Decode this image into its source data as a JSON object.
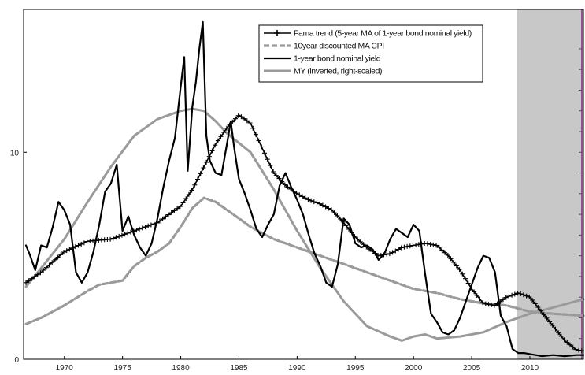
{
  "chart_data": {
    "type": "line",
    "xlim": [
      1966.5,
      2014.6
    ],
    "ylim": [
      0,
      16.9
    ],
    "shaded_region": {
      "x_start": 2008.9,
      "x_end": 2014.6,
      "color": "#c8c8c8"
    },
    "x_ticks": [
      1970,
      1975,
      1980,
      1985,
      1990,
      1995,
      2000,
      2005,
      2010
    ],
    "x_tick_labels": [
      "1970",
      "1975",
      "1980",
      "1985",
      "1990",
      "1995",
      "2000",
      "2005",
      "2010"
    ],
    "y_ticks": [
      0,
      10
    ],
    "y_tick_labels": [
      "0",
      "10"
    ],
    "legend": {
      "position": "top-right"
    },
    "series": [
      {
        "name": "Fama trend (5-year MA of 1-year bond nominal yield)",
        "style": "plus-marker",
        "color": "#000000",
        "x": [
          1966.7,
          1968,
          1970,
          1972,
          1974,
          1976,
          1978,
          1980,
          1981,
          1982,
          1983,
          1984,
          1985,
          1986,
          1987,
          1988,
          1989,
          1990,
          1991,
          1992,
          1993,
          1994,
          1995,
          1996,
          1997,
          1998,
          1999,
          2000,
          2001,
          2002,
          2003,
          2004,
          2005,
          2006,
          2007,
          2008,
          2009,
          2010,
          2011,
          2012,
          2013,
          2014,
          2014.6
        ],
        "y": [
          3.7,
          4.2,
          5.2,
          5.7,
          5.8,
          6.2,
          6.6,
          7.4,
          8.2,
          9.3,
          10.4,
          11.2,
          11.8,
          11.4,
          10.2,
          9.0,
          8.4,
          8.0,
          7.7,
          7.5,
          7.2,
          6.6,
          5.9,
          5.4,
          5.0,
          5.1,
          5.4,
          5.5,
          5.6,
          5.5,
          5.0,
          4.3,
          3.4,
          2.7,
          2.6,
          3.0,
          3.2,
          3.0,
          2.3,
          1.6,
          0.9,
          0.45,
          0.4
        ]
      },
      {
        "name": "10year discounted MA CPI",
        "style": "dashed",
        "color": "#9a9a9a",
        "x": [
          1966.7,
          1968,
          1970,
          1972,
          1973,
          1974,
          1975,
          1976,
          1977,
          1978,
          1979,
          1980,
          1981,
          1982,
          1983,
          1984,
          1985,
          1986,
          1988,
          1990,
          1992,
          1994,
          1996,
          1998,
          2000,
          2002,
          2004,
          2006,
          2008,
          2010,
          2012,
          2014.6
        ],
        "y": [
          1.7,
          2.0,
          2.6,
          3.3,
          3.6,
          3.7,
          3.8,
          4.5,
          4.9,
          5.2,
          5.6,
          6.4,
          7.3,
          7.8,
          7.6,
          7.2,
          6.8,
          6.4,
          5.8,
          5.4,
          5.0,
          4.6,
          4.2,
          3.8,
          3.4,
          3.2,
          2.9,
          2.7,
          2.6,
          2.3,
          2.2,
          2.1
        ]
      },
      {
        "name": "1-year bond nominal yield",
        "style": "solid",
        "color": "#000000",
        "x": [
          1966.7,
          1967,
          1967.5,
          1968,
          1968.5,
          1969,
          1969.5,
          1970,
          1970.5,
          1971,
          1971.5,
          1972,
          1972.5,
          1973,
          1973.5,
          1974,
          1974.5,
          1975,
          1975.5,
          1976,
          1976.5,
          1977,
          1977.5,
          1978,
          1978.5,
          1979,
          1979.5,
          1980,
          1980.3,
          1980.6,
          1981,
          1981.3,
          1981.6,
          1981.9,
          1982.2,
          1982.5,
          1983,
          1983.5,
          1984,
          1984.3,
          1984.6,
          1985,
          1985.5,
          1986,
          1986.5,
          1987,
          1987.5,
          1988,
          1988.5,
          1989,
          1989.5,
          1990,
          1990.5,
          1991,
          1991.5,
          1992,
          1992.5,
          1993,
          1993.5,
          1994,
          1994.5,
          1995,
          1995.5,
          1996,
          1996.5,
          1997,
          1997.5,
          1998,
          1998.5,
          1999,
          1999.5,
          2000,
          2000.5,
          2001,
          2001.5,
          2002,
          2002.5,
          2003,
          2003.5,
          2004,
          2004.5,
          2005,
          2005.5,
          2006,
          2006.5,
          2007,
          2007.5,
          2008,
          2008.5,
          2009,
          2009.5,
          2010,
          2010.5,
          2011,
          2012,
          2013,
          2014,
          2014.6
        ],
        "y": [
          5.5,
          5.1,
          4.3,
          5.5,
          5.4,
          6.4,
          7.6,
          7.2,
          6.5,
          4.2,
          3.7,
          4.2,
          5.2,
          6.5,
          8.1,
          8.5,
          9.4,
          6.2,
          6.9,
          6.0,
          5.4,
          5.0,
          5.6,
          6.8,
          8.3,
          9.6,
          10.7,
          13.2,
          14.6,
          9.1,
          12.2,
          13.4,
          15.0,
          16.3,
          10.8,
          9.6,
          9.0,
          8.9,
          10.5,
          11.5,
          10.2,
          8.7,
          8.0,
          7.2,
          6.3,
          5.9,
          6.5,
          7.0,
          8.4,
          9.0,
          8.3,
          7.7,
          7.0,
          6.0,
          5.1,
          4.5,
          3.7,
          3.5,
          4.6,
          6.8,
          6.5,
          5.6,
          5.4,
          5.5,
          5.3,
          4.8,
          5.1,
          5.8,
          6.3,
          6.1,
          5.9,
          6.5,
          6.2,
          4.1,
          2.2,
          1.8,
          1.3,
          1.2,
          1.4,
          2.0,
          2.8,
          3.6,
          4.4,
          5.0,
          4.9,
          4.2,
          2.1,
          1.6,
          0.5,
          0.3,
          0.3,
          0.25,
          0.2,
          0.15,
          0.2,
          0.15,
          0.2,
          0.2
        ]
      },
      {
        "name": "MY (inverted, right-scaled)",
        "style": "solid-thick",
        "color": "#9a9a9a",
        "x": [
          1966.7,
          1968,
          1970,
          1972,
          1974,
          1976,
          1978,
          1980,
          1981,
          1982,
          1983,
          1984,
          1986,
          1988,
          1990,
          1992,
          1994,
          1996,
          1998,
          1999,
          2000,
          2001,
          2002,
          2004,
          2006,
          2008,
          2010,
          2012,
          2014.6
        ],
        "y": [
          3.5,
          4.4,
          5.8,
          7.6,
          9.3,
          10.8,
          11.6,
          12.0,
          12.1,
          12.0,
          11.5,
          10.9,
          10.0,
          8.2,
          6.2,
          4.4,
          2.8,
          1.6,
          1.1,
          0.9,
          1.1,
          1.2,
          1.0,
          1.1,
          1.3,
          1.8,
          2.2,
          2.5,
          2.9
        ]
      }
    ]
  }
}
